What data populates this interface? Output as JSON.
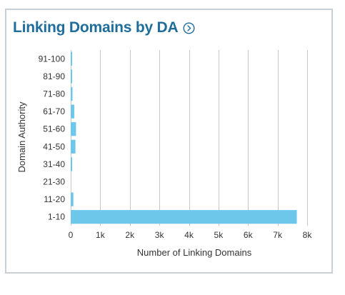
{
  "card": {
    "title": "Linking Domains by DA",
    "info_icon": "chevron-right-circle-icon"
  },
  "colors": {
    "title": "#1f6d9c",
    "bar": "#6cc7eb",
    "grid": "#c8c8c8",
    "border": "#c9d1d6"
  },
  "chart_data": {
    "type": "bar",
    "orientation": "horizontal",
    "title": "Linking Domains by DA",
    "xlabel": "Number of Linking Domains",
    "ylabel": "Domain Authority",
    "categories": [
      "91-100",
      "81-90",
      "71-80",
      "61-70",
      "51-60",
      "41-50",
      "31-40",
      "21-30",
      "11-20",
      "1-10"
    ],
    "values": [
      30,
      30,
      60,
      120,
      180,
      160,
      40,
      0,
      90,
      7650
    ],
    "xlim": [
      0,
      8000
    ],
    "xticks": [
      0,
      1000,
      2000,
      3000,
      4000,
      5000,
      6000,
      7000,
      8000
    ],
    "xtick_labels": [
      "0",
      "1k",
      "2k",
      "3k",
      "4k",
      "5k",
      "6k",
      "7k",
      "8k"
    ],
    "grid": "vertical",
    "legend": "none"
  }
}
